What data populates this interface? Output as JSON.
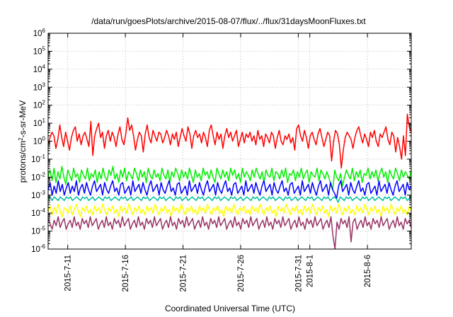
{
  "chart_data": {
    "type": "line",
    "title": "/data/run/goesPlots/archive/2015-08-07/flux/../flux/31daysMoonFluxes.txt",
    "xlabel": "Coordinated Universal Time (UTC)",
    "ylabel_parts": {
      "pre": "protons/cm",
      "sup": "2",
      "post": "-s-sr-MeV"
    },
    "yscale": "log",
    "ylim_exp": [
      -6,
      6
    ],
    "ytick_base": "10",
    "yticks_exp": [
      "-6",
      "-5",
      "-4",
      "-3",
      "-2",
      "-1",
      "0",
      "1",
      "2",
      "3",
      "4",
      "5",
      "6"
    ],
    "xlim_day": [
      -1.7,
      29.8
    ],
    "xticks": [
      {
        "label": "2015-7-11",
        "day": 0
      },
      {
        "label": "2015-7-16",
        "day": 5
      },
      {
        "label": "2015-7-21",
        "day": 10
      },
      {
        "label": "2015-7-26",
        "day": 15
      },
      {
        "label": "2015-7-31",
        "day": 20
      },
      {
        "label": "2015-8-1",
        "day": 21
      },
      {
        "label": "2015-8-6",
        "day": 26
      }
    ],
    "grid": true,
    "legend": "none",
    "series": [
      {
        "color": "#ff0000",
        "values_log10": [
          -0.2,
          0.2,
          0.5,
          0.3,
          -0.4,
          0.1,
          0.9,
          0.2,
          -0.3,
          0.5,
          0.0,
          -0.5,
          0.2,
          0.6,
          0.8,
          0.0,
          0.4,
          -0.2,
          0.3,
          0.5,
          0.1,
          -0.3,
          1.1,
          -0.8,
          0.3,
          0.7,
          1.0,
          0.2,
          0.5,
          -0.4,
          0.3,
          0.6,
          0.0,
          0.5,
          0.2,
          -0.3,
          0.4,
          0.8,
          0.1,
          -0.2,
          0.4,
          1.3,
          0.6,
          0.9,
          0.3,
          -0.5,
          0.1,
          0.5,
          0.3,
          -0.6,
          0.4,
          0.9,
          0.2,
          -0.1,
          0.6,
          0.3,
          0.0,
          0.5,
          0.4,
          -0.1,
          0.2,
          0.6,
          0.3,
          -0.2,
          0.4,
          0.1,
          0.5,
          -0.3,
          0.2,
          0.7,
          0.3,
          0.0,
          0.8,
          0.4,
          -0.4,
          0.3,
          0.6,
          0.2,
          0.4,
          -0.1,
          0.5,
          0.2,
          -0.3,
          0.6,
          0.9,
          0.3,
          -0.2,
          0.5,
          0.1,
          0.4,
          -0.4,
          0.3,
          0.7,
          0.2,
          0.5,
          0.0,
          0.3,
          0.6,
          -0.3,
          0.1,
          0.5,
          -0.1,
          0.4,
          0.2,
          0.5,
          0.0,
          0.3,
          -0.2,
          0.6,
          0.1,
          0.3,
          -0.3,
          0.4,
          0.2,
          -0.1,
          0.5,
          0.3,
          -0.4,
          0.2,
          0.6,
          0.0,
          -0.2,
          0.3,
          0.1,
          0.4,
          -0.1,
          0.2,
          -0.5,
          0.7,
          0.9,
          0.3,
          0.0,
          0.6,
          0.2,
          -0.4,
          0.3,
          0.5,
          0.1,
          -0.2,
          0.4,
          0.7,
          0.2,
          -0.3,
          0.1,
          0.5,
          0.3,
          -1.1,
          0.0,
          0.6,
          0.4,
          -0.2,
          -1.5,
          -0.5,
          0.2,
          0.5,
          0.3,
          0.1,
          -0.4,
          0.2,
          0.6,
          0.8,
          0.3,
          -0.1,
          0.4,
          0.1,
          -0.3,
          0.5,
          0.2,
          0.6,
          0.0,
          -0.3,
          0.4,
          0.2,
          0.5,
          0.8,
          0.1,
          -0.2,
          0.5,
          0.3,
          -0.6,
          0.2,
          -0.3,
          -1.0,
          0.3,
          -0.8,
          1.5,
          0.8,
          0.5
        ]
      },
      {
        "color": "#00ee00",
        "values_log10": [
          -2.0,
          -1.6,
          -2.2,
          -1.5,
          -2.3,
          -1.7,
          -2.1,
          -1.4,
          -2.0,
          -2.4,
          -1.6,
          -1.9,
          -2.2,
          -1.5,
          -2.0,
          -1.8,
          -2.3,
          -1.6,
          -1.9,
          -2.1,
          -1.5,
          -2.2,
          -1.8,
          -2.0,
          -1.6,
          -2.3,
          -1.7,
          -2.1,
          -1.5,
          -2.0,
          -2.2,
          -1.6,
          -1.9,
          -1.4,
          -2.1,
          -1.8,
          -2.3,
          -1.6,
          -2.0,
          -1.5,
          -2.2,
          -1.7,
          -1.9,
          -2.1,
          -1.5,
          -1.8,
          -2.2,
          -1.6,
          -2.0,
          -1.7,
          -2.3,
          -1.5,
          -1.9,
          -2.1,
          -1.6,
          -2.0,
          -1.8,
          -2.2,
          -1.5,
          -1.9,
          -2.1,
          -1.6,
          -2.3,
          -1.7,
          -2.0,
          -1.5,
          -1.8,
          -2.2,
          -1.6,
          -2.0,
          -1.7,
          -2.1,
          -1.5,
          -1.9,
          -2.3,
          -1.6,
          -2.0,
          -1.8,
          -2.2,
          -1.5,
          -1.9,
          -1.7,
          -2.1,
          -1.6,
          -2.0,
          -2.3,
          -1.5,
          -1.8,
          -2.1,
          -1.6,
          -2.0,
          -1.7,
          -2.2,
          -1.5,
          -1.9,
          -1.6,
          -2.1,
          -1.8,
          -2.3,
          -1.5,
          -2.0,
          -1.7,
          -1.9,
          -2.2,
          -1.6,
          -2.0,
          -1.5,
          -1.8,
          -2.1,
          -1.7,
          -2.3,
          -1.6,
          -1.9,
          -2.0,
          -1.5,
          -2.2,
          -1.7,
          -1.8,
          -2.1,
          -1.6,
          -2.0,
          -1.5,
          -2.3,
          -1.8,
          -1.9,
          -1.6,
          -2.2,
          -1.7,
          -2.0,
          -1.5,
          -2.1,
          -1.8,
          -1.6,
          -2.3,
          -1.7,
          -1.9,
          -2.0,
          -1.5,
          -2.2,
          -1.6,
          -1.8,
          -2.1,
          -1.7,
          -2.0,
          -2.4,
          -2.7,
          -1.6,
          -2.0,
          -2.2,
          -1.8,
          -2.5,
          -2.0,
          -1.6,
          -1.9,
          -2.1,
          -1.5,
          -2.2,
          -1.7,
          -2.0,
          -1.6,
          -2.3,
          -1.8,
          -1.9,
          -1.5,
          -2.1,
          -1.7,
          -2.0,
          -1.6,
          -2.2,
          -1.8,
          -1.5,
          -2.0,
          -1.7,
          -2.3,
          -1.6,
          -1.9,
          -2.1,
          -1.5,
          -1.8,
          -2.2,
          -1.6,
          -2.0,
          -1.7,
          -1.9,
          -2.1,
          -1.6
        ]
      },
      {
        "color": "#0000ff",
        "values_log10": [
          -2.7,
          -2.3,
          -3.0,
          -2.5,
          -2.9,
          -2.2,
          -2.8,
          -2.4,
          -3.0,
          -2.6,
          -2.3,
          -2.9,
          -2.5,
          -2.8,
          -2.2,
          -3.0,
          -2.6,
          -2.4,
          -2.9,
          -2.3,
          -2.7,
          -3.0,
          -2.5,
          -2.2,
          -2.8,
          -2.6,
          -2.4,
          -3.0,
          -2.3,
          -2.7,
          -2.9,
          -2.5,
          -2.2,
          -2.8,
          -2.6,
          -3.0,
          -2.4,
          -2.3,
          -2.9,
          -2.7,
          -2.5,
          -3.0,
          -2.2,
          -2.8,
          -2.6,
          -2.4,
          -2.9,
          -2.3,
          -2.7,
          -3.0,
          -2.5,
          -2.2,
          -2.8,
          -2.6,
          -2.4,
          -3.0,
          -2.3,
          -2.7,
          -2.9,
          -2.5,
          -2.2,
          -2.8,
          -2.6,
          -3.0,
          -2.4,
          -2.3,
          -2.9,
          -2.7,
          -2.5,
          -3.0,
          -2.2,
          -2.8,
          -2.6,
          -2.4,
          -2.9,
          -2.3,
          -2.7,
          -3.0,
          -2.5,
          -2.2,
          -2.8,
          -2.6,
          -2.4,
          -3.0,
          -2.3,
          -2.7,
          -2.9,
          -2.5,
          -2.2,
          -2.8,
          -2.6,
          -3.0,
          -2.4,
          -2.3,
          -2.9,
          -2.7,
          -2.5,
          -3.0,
          -2.2,
          -2.8,
          -2.6,
          -2.4,
          -2.9,
          -2.3,
          -2.7,
          -3.0,
          -2.5,
          -2.2,
          -2.8,
          -2.6,
          -2.4,
          -3.0,
          -2.3,
          -2.7,
          -2.9,
          -2.5,
          -2.2,
          -2.8,
          -2.6,
          -3.0,
          -2.4,
          -2.3,
          -2.9,
          -2.7,
          -2.5,
          -3.0,
          -2.2,
          -2.8,
          -2.6,
          -2.4,
          -2.9,
          -2.3,
          -2.7,
          -3.0,
          -2.5,
          -2.2,
          -2.8,
          -2.6,
          -2.4,
          -3.0,
          -2.3,
          -2.7,
          -2.9,
          -3.2,
          -2.5,
          -2.2,
          -2.8,
          -2.6,
          -2.4,
          -3.0,
          -2.3,
          -2.7,
          -2.9,
          -2.5,
          -2.2,
          -2.8,
          -2.6,
          -3.0,
          -2.4,
          -2.3,
          -2.9,
          -2.7,
          -2.5,
          -3.0,
          -2.2,
          -2.8,
          -2.6,
          -2.4,
          -2.9,
          -2.3,
          -2.7,
          -3.0,
          -2.5,
          -2.2,
          -2.8,
          -2.6,
          -2.4,
          -3.0,
          -2.3,
          -2.7,
          -2.5
        ]
      },
      {
        "color": "#00c0a0",
        "values_log10": [
          -3.2,
          -3.1,
          -3.3,
          -3.1,
          -3.2,
          -3.3,
          -3.1,
          -3.2,
          -3.3,
          -3.1,
          -3.2,
          -3.1,
          -3.3,
          -3.2,
          -3.1,
          -3.2,
          -3.3,
          -3.1,
          -3.2,
          -3.1,
          -3.3,
          -3.2,
          -3.1,
          -3.3,
          -3.2,
          -3.1,
          -3.2,
          -3.3,
          -3.1,
          -3.2,
          -3.1,
          -3.3,
          -3.2,
          -3.1,
          -3.2,
          -3.3,
          -3.1,
          -3.2,
          -3.1,
          -3.3,
          -3.2,
          -3.1,
          -3.3,
          -3.2,
          -3.1,
          -3.2,
          -3.3,
          -3.1,
          -3.2,
          -3.1,
          -3.3,
          -3.2,
          -3.1,
          -3.2,
          -3.3,
          -3.1,
          -3.2,
          -3.1,
          -3.3,
          -3.2,
          -3.1,
          -3.2,
          -3.3,
          -3.1,
          -3.2,
          -3.1,
          -3.3,
          -3.2,
          -3.1,
          -3.3,
          -3.2,
          -3.1,
          -3.2,
          -3.3,
          -3.1,
          -3.2,
          -3.1,
          -3.3,
          -3.2,
          -3.1,
          -3.2,
          -3.3,
          -3.1,
          -3.2,
          -3.1,
          -3.3,
          -3.2,
          -3.1,
          -3.2,
          -3.3,
          -3.1,
          -3.2,
          -3.1,
          -3.3,
          -3.2,
          -3.1,
          -3.3,
          -3.2,
          -3.1,
          -3.2,
          -3.3,
          -3.1,
          -3.2,
          -3.1,
          -3.3,
          -3.2,
          -3.1,
          -3.2,
          -3.3,
          -3.1,
          -3.2,
          -3.1,
          -3.3,
          -3.2,
          -3.1,
          -3.2,
          -3.3,
          -3.1,
          -3.2,
          -3.1,
          -3.3,
          -3.2,
          -3.1,
          -3.3,
          -3.2,
          -3.1,
          -3.2,
          -3.3,
          -3.1,
          -3.2,
          -3.1,
          -3.3,
          -3.2,
          -3.1,
          -3.2,
          -3.3,
          -3.1,
          -3.2,
          -3.1,
          -3.3,
          -3.2,
          -3.1,
          -3.2,
          -3.4,
          -3.1,
          -3.2,
          -3.3,
          -3.1,
          -3.2,
          -3.1,
          -3.3,
          -3.2,
          -3.1,
          -3.2,
          -3.3,
          -3.1,
          -3.2,
          -3.1,
          -3.3,
          -3.2,
          -3.1,
          -3.3,
          -3.2,
          -3.1,
          -3.2,
          -3.3,
          -3.1,
          -3.2,
          -3.1,
          -3.3,
          -3.2,
          -3.1,
          -3.2,
          -3.3,
          -3.1,
          -3.2,
          -3.1,
          -3.3,
          -3.2,
          -3.1
        ]
      },
      {
        "color": "#ffff00",
        "values_log10": [
          -3.9,
          -3.6,
          -4.1,
          -3.7,
          -4.0,
          -3.5,
          -3.9,
          -4.2,
          -3.7,
          -3.8,
          -4.0,
          -3.6,
          -4.1,
          -3.8,
          -3.5,
          -3.9,
          -4.2,
          -3.7,
          -3.9,
          -3.6,
          -4.0,
          -3.8,
          -4.1,
          -3.6,
          -3.9,
          -3.7,
          -4.0,
          -3.5,
          -3.8,
          -4.1,
          -3.7,
          -3.9,
          -3.6,
          -4.0,
          -3.8,
          -4.2,
          -3.6,
          -3.9,
          -3.7,
          -4.0,
          -3.5,
          -3.8,
          -4.1,
          -3.7,
          -3.9,
          -3.6,
          -4.0,
          -3.8,
          -4.1,
          -3.6,
          -3.9,
          -3.7,
          -4.0,
          -3.5,
          -3.8,
          -4.1,
          -3.7,
          -3.9,
          -3.6,
          -4.0,
          -3.8,
          -4.2,
          -3.6,
          -3.9,
          -3.7,
          -4.0,
          -3.5,
          -3.8,
          -4.1,
          -3.7,
          -3.9,
          -3.6,
          -4.0,
          -3.8,
          -4.1,
          -3.6,
          -3.9,
          -3.7,
          -4.0,
          -3.5,
          -3.8,
          -4.1,
          -3.7,
          -3.9,
          -3.6,
          -4.0,
          -3.8,
          -4.2,
          -3.6,
          -3.9,
          -3.7,
          -4.0,
          -3.5,
          -3.8,
          -4.1,
          -3.7,
          -3.9,
          -3.6,
          -4.0,
          -3.8,
          -4.1,
          -3.6,
          -3.9,
          -3.7,
          -4.0,
          -3.5,
          -3.8,
          -4.1,
          -3.7,
          -3.9,
          -3.6,
          -4.0,
          -3.8,
          -4.2,
          -3.6,
          -3.9,
          -3.7,
          -4.0,
          -3.5,
          -3.8,
          -4.1,
          -3.7,
          -3.9,
          -3.6,
          -4.0,
          -3.8,
          -4.1,
          -3.6,
          -3.9,
          -3.7,
          -4.0,
          -3.5,
          -3.8,
          -4.1,
          -3.7,
          -3.9,
          -3.6,
          -4.0,
          -3.8,
          -4.2,
          -3.6,
          -3.9,
          -3.7,
          -4.0,
          -3.5,
          -3.8,
          -4.1,
          -3.7,
          -3.9,
          -3.6,
          -4.0,
          -3.8,
          -4.1,
          -3.6,
          -3.9,
          -3.7,
          -4.0,
          -3.5,
          -3.8,
          -4.1,
          -3.7,
          -3.9,
          -3.6,
          -4.0,
          -3.8,
          -4.2,
          -3.6,
          -3.9,
          -3.7,
          -4.0,
          -3.5,
          -3.8,
          -4.1,
          -3.7,
          -3.9,
          -3.6,
          -4.0,
          -3.8,
          -4.1,
          -3.6,
          -3.9
        ]
      },
      {
        "color": "#993366",
        "values_log10": [
          -4.3,
          -4.6,
          -4.9,
          -4.4,
          -4.7,
          -4.2,
          -4.8,
          -4.5,
          -4.3,
          -4.9,
          -4.6,
          -4.4,
          -4.8,
          -4.2,
          -4.7,
          -4.5,
          -4.9,
          -4.3,
          -4.6,
          -4.4,
          -4.8,
          -4.2,
          -4.7,
          -4.5,
          -4.3,
          -4.9,
          -4.6,
          -4.4,
          -4.8,
          -4.2,
          -4.7,
          -4.5,
          -4.9,
          -4.3,
          -4.6,
          -4.4,
          -4.8,
          -4.2,
          -4.7,
          -4.5,
          -4.3,
          -4.9,
          -4.6,
          -4.4,
          -4.8,
          -4.2,
          -4.7,
          -4.5,
          -4.9,
          -4.3,
          -4.6,
          -4.4,
          -4.8,
          -4.2,
          -4.7,
          -4.5,
          -4.3,
          -4.9,
          -4.6,
          -4.4,
          -4.8,
          -4.2,
          -4.7,
          -4.5,
          -4.9,
          -4.3,
          -4.6,
          -4.4,
          -4.8,
          -4.2,
          -4.7,
          -4.5,
          -4.3,
          -4.9,
          -4.6,
          -4.4,
          -4.8,
          -4.2,
          -4.7,
          -4.5,
          -4.9,
          -4.3,
          -4.6,
          -4.4,
          -4.8,
          -4.2,
          -4.7,
          -4.5,
          -4.3,
          -4.9,
          -4.6,
          -4.4,
          -4.8,
          -4.2,
          -4.7,
          -4.5,
          -4.9,
          -4.3,
          -4.6,
          -4.4,
          -4.8,
          -4.2,
          -4.7,
          -4.5,
          -4.3,
          -4.9,
          -4.6,
          -4.4,
          -4.8,
          -4.2,
          -4.7,
          -4.5,
          -4.9,
          -4.3,
          -4.6,
          -4.4,
          -4.8,
          -4.2,
          -4.7,
          -4.5,
          -4.3,
          -4.9,
          -4.6,
          -4.4,
          -4.8,
          -4.2,
          -4.7,
          -4.5,
          -4.9,
          -4.3,
          -4.6,
          -4.4,
          -4.8,
          -4.2,
          -4.7,
          -4.5,
          -4.3,
          -4.9,
          -4.6,
          -4.4,
          -4.8,
          -4.2,
          -5.3,
          -6.0,
          -4.5,
          -4.9,
          -4.3,
          -4.6,
          -4.4,
          -4.8,
          -4.2,
          -5.6,
          -4.5,
          -4.3,
          -4.9,
          -4.6,
          -4.4,
          -4.8,
          -4.2,
          -4.7,
          -4.5,
          -4.9,
          -4.3,
          -4.6,
          -4.4,
          -4.8,
          -4.2,
          -4.7,
          -4.5,
          -4.3,
          -4.9,
          -4.6,
          -4.4,
          -4.8,
          -4.2,
          -4.7,
          -4.5,
          -4.9,
          -4.3,
          -4.6,
          -4.4,
          -4.8
        ]
      }
    ]
  }
}
